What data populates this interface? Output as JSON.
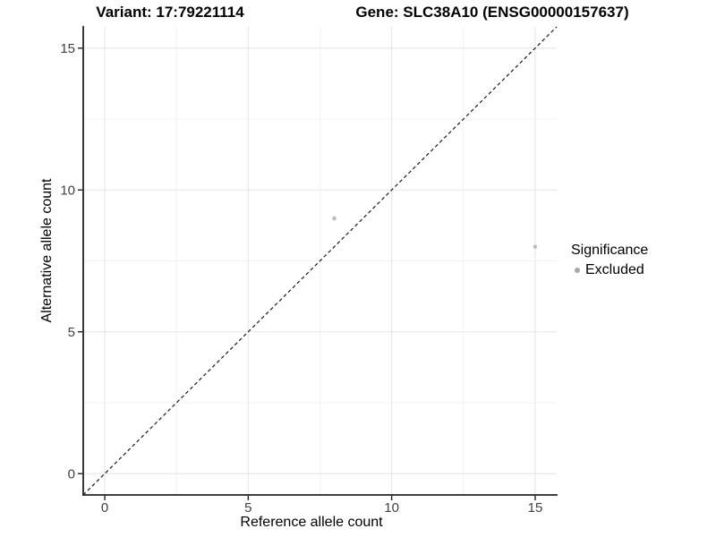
{
  "chart_data": {
    "type": "scatter",
    "titles": {
      "variant": "Variant: 17:79221114",
      "gene": "Gene: SLC38A10 (ENSG00000157637)"
    },
    "xlabel": "Reference allele count",
    "ylabel": "Alternative allele count",
    "xlim": [
      -0.75,
      15.75
    ],
    "ylim": [
      -0.75,
      15.75
    ],
    "x_ticks": [
      0,
      5,
      10,
      15
    ],
    "y_ticks": [
      0,
      5,
      10,
      15
    ],
    "x_minor_ticks": [
      2.5,
      7.5,
      12.5
    ],
    "y_minor_ticks": [
      2.5,
      7.5,
      12.5
    ],
    "grid": "major+minor",
    "legend_position": "right",
    "legend": {
      "title": "Significance",
      "items": [
        {
          "label": "Excluded",
          "color": "#a8a8a8"
        }
      ]
    },
    "series": [
      {
        "name": "Excluded",
        "color": "#bdbdbd",
        "points": [
          {
            "x": 8,
            "y": 9
          },
          {
            "x": 15,
            "y": 8
          }
        ]
      }
    ],
    "reference_line": {
      "type": "identity",
      "slope": 1,
      "intercept": 0,
      "style": "dashed",
      "color": "#1a1a1a"
    },
    "colors": {
      "background": "#ffffff",
      "grid_major": "#e6e6e6",
      "grid_minor": "#f2f2f2",
      "axis_line": "#222222",
      "tick_label": "#404040",
      "text": "#000000"
    }
  }
}
